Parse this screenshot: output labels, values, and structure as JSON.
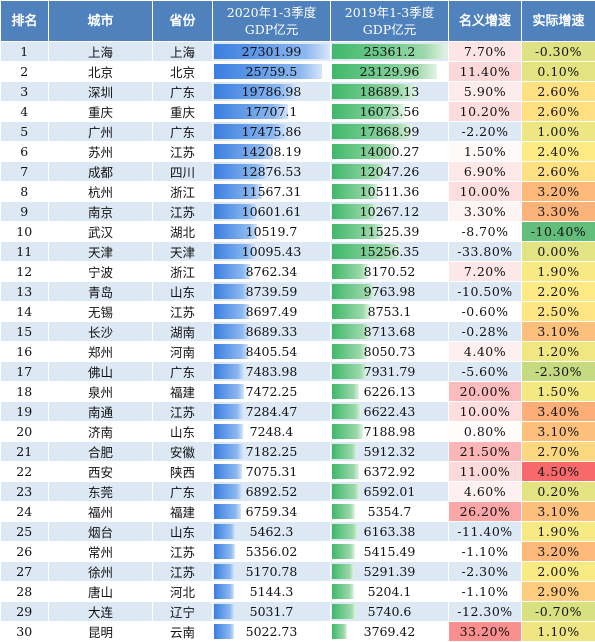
{
  "headers": {
    "rank": "排名",
    "city": "城市",
    "province": "省份",
    "gdp2020_line1": "2020年1-3季度",
    "gdp2020_line2": "GDP亿元",
    "gdp2019_line1": "2019年1-3季度",
    "gdp2019_line2": "GDP亿元",
    "nominal": "名义增速",
    "real": "实际增速"
  },
  "colors": {
    "header": "#4f81bd",
    "band": "#dde8f5",
    "bar2020": "#3a7ee0",
    "bar2019": "#3fb86a",
    "scale_red": "#f8696b",
    "scale_yellow": "#ffeb84",
    "scale_green": "#63be7b"
  },
  "rows": [
    {
      "rank": "1",
      "city": "上海",
      "province": "上海",
      "gdp2020": "27301.99",
      "gdp2019": "25361.2",
      "nominal": "7.70%",
      "real": "-0.30%",
      "n": 7.7,
      "r": -0.3,
      "v20": 27301.99,
      "v19": 25361.2
    },
    {
      "rank": "2",
      "city": "北京",
      "province": "北京",
      "gdp2020": "25759.5",
      "gdp2019": "23129.96",
      "nominal": "11.40%",
      "real": "0.10%",
      "n": 11.4,
      "r": 0.1,
      "v20": 25759.5,
      "v19": 23129.96
    },
    {
      "rank": "3",
      "city": "深圳",
      "province": "广东",
      "gdp2020": "19786.98",
      "gdp2019": "18689.13",
      "nominal": "5.90%",
      "real": "2.60%",
      "n": 5.9,
      "r": 2.6,
      "v20": 19786.98,
      "v19": 18689.13
    },
    {
      "rank": "4",
      "city": "重庆",
      "province": "重庆",
      "gdp2020": "17707.1",
      "gdp2019": "16073.56",
      "nominal": "10.20%",
      "real": "2.60%",
      "n": 10.2,
      "r": 2.6,
      "v20": 17707.1,
      "v19": 16073.56
    },
    {
      "rank": "5",
      "city": "广州",
      "province": "广东",
      "gdp2020": "17475.86",
      "gdp2019": "17868.99",
      "nominal": "-2.20%",
      "real": "1.00%",
      "n": -2.2,
      "r": 1.0,
      "v20": 17475.86,
      "v19": 17868.99
    },
    {
      "rank": "6",
      "city": "苏州",
      "province": "江苏",
      "gdp2020": "14208.19",
      "gdp2019": "14000.27",
      "nominal": "1.50%",
      "real": "2.40%",
      "n": 1.5,
      "r": 2.4,
      "v20": 14208.19,
      "v19": 14000.27
    },
    {
      "rank": "7",
      "city": "成都",
      "province": "四川",
      "gdp2020": "12876.53",
      "gdp2019": "12047.26",
      "nominal": "6.90%",
      "real": "2.60%",
      "n": 6.9,
      "r": 2.6,
      "v20": 12876.53,
      "v19": 12047.26
    },
    {
      "rank": "8",
      "city": "杭州",
      "province": "浙江",
      "gdp2020": "11567.31",
      "gdp2019": "10511.36",
      "nominal": "10.00%",
      "real": "3.20%",
      "n": 10.0,
      "r": 3.2,
      "v20": 11567.31,
      "v19": 10511.36
    },
    {
      "rank": "9",
      "city": "南京",
      "province": "江苏",
      "gdp2020": "10601.61",
      "gdp2019": "10267.12",
      "nominal": "3.30%",
      "real": "3.30%",
      "n": 3.3,
      "r": 3.3,
      "v20": 10601.61,
      "v19": 10267.12
    },
    {
      "rank": "10",
      "city": "武汉",
      "province": "湖北",
      "gdp2020": "10519.7",
      "gdp2019": "11525.39",
      "nominal": "-8.70%",
      "real": "-10.40%",
      "n": -8.7,
      "r": -10.4,
      "v20": 10519.7,
      "v19": 11525.39
    },
    {
      "rank": "11",
      "city": "天津",
      "province": "天津",
      "gdp2020": "10095.43",
      "gdp2019": "15256.35",
      "nominal": "-33.80%",
      "real": "0.00%",
      "n": -33.8,
      "r": 0.0,
      "v20": 10095.43,
      "v19": 15256.35
    },
    {
      "rank": "12",
      "city": "宁波",
      "province": "浙江",
      "gdp2020": "8762.34",
      "gdp2019": "8170.52",
      "nominal": "7.20%",
      "real": "1.90%",
      "n": 7.2,
      "r": 1.9,
      "v20": 8762.34,
      "v19": 8170.52
    },
    {
      "rank": "13",
      "city": "青岛",
      "province": "山东",
      "gdp2020": "8739.59",
      "gdp2019": "9763.98",
      "nominal": "-10.50%",
      "real": "2.20%",
      "n": -10.5,
      "r": 2.2,
      "v20": 8739.59,
      "v19": 9763.98
    },
    {
      "rank": "14",
      "city": "无锡",
      "province": "江苏",
      "gdp2020": "8697.49",
      "gdp2019": "8753.1",
      "nominal": "-0.60%",
      "real": "2.50%",
      "n": -0.6,
      "r": 2.5,
      "v20": 8697.49,
      "v19": 8753.1
    },
    {
      "rank": "15",
      "city": "长沙",
      "province": "湖南",
      "gdp2020": "8689.33",
      "gdp2019": "8713.68",
      "nominal": "-0.28%",
      "real": "3.10%",
      "n": -0.28,
      "r": 3.1,
      "v20": 8689.33,
      "v19": 8713.68
    },
    {
      "rank": "16",
      "city": "郑州",
      "province": "河南",
      "gdp2020": "8405.54",
      "gdp2019": "8050.73",
      "nominal": "4.40%",
      "real": "1.20%",
      "n": 4.4,
      "r": 1.2,
      "v20": 8405.54,
      "v19": 8050.73
    },
    {
      "rank": "17",
      "city": "佛山",
      "province": "广东",
      "gdp2020": "7483.98",
      "gdp2019": "7931.79",
      "nominal": "-5.60%",
      "real": "-2.30%",
      "n": -5.6,
      "r": -2.3,
      "v20": 7483.98,
      "v19": 7931.79
    },
    {
      "rank": "18",
      "city": "泉州",
      "province": "福建",
      "gdp2020": "7472.25",
      "gdp2019": "6226.13",
      "nominal": "20.00%",
      "real": "1.50%",
      "n": 20.0,
      "r": 1.5,
      "v20": 7472.25,
      "v19": 6226.13
    },
    {
      "rank": "19",
      "city": "南通",
      "province": "江苏",
      "gdp2020": "7284.47",
      "gdp2019": "6622.43",
      "nominal": "10.00%",
      "real": "3.40%",
      "n": 10.0,
      "r": 3.4,
      "v20": 7284.47,
      "v19": 6622.43
    },
    {
      "rank": "20",
      "city": "济南",
      "province": "山东",
      "gdp2020": "7248.4",
      "gdp2019": "7188.98",
      "nominal": "0.80%",
      "real": "3.10%",
      "n": 0.8,
      "r": 3.1,
      "v20": 7248.4,
      "v19": 7188.98
    },
    {
      "rank": "21",
      "city": "合肥",
      "province": "安徽",
      "gdp2020": "7182.25",
      "gdp2019": "5912.32",
      "nominal": "21.50%",
      "real": "2.70%",
      "n": 21.5,
      "r": 2.7,
      "v20": 7182.25,
      "v19": 5912.32
    },
    {
      "rank": "22",
      "city": "西安",
      "province": "陕西",
      "gdp2020": "7075.31",
      "gdp2019": "6372.92",
      "nominal": "11.00%",
      "real": "4.50%",
      "n": 11.0,
      "r": 4.5,
      "v20": 7075.31,
      "v19": 6372.92
    },
    {
      "rank": "23",
      "city": "东莞",
      "province": "广东",
      "gdp2020": "6892.52",
      "gdp2019": "6592.01",
      "nominal": "4.60%",
      "real": "0.20%",
      "n": 4.6,
      "r": 0.2,
      "v20": 6892.52,
      "v19": 6592.01
    },
    {
      "rank": "24",
      "city": "福州",
      "province": "福建",
      "gdp2020": "6759.34",
      "gdp2019": "5354.7",
      "nominal": "26.20%",
      "real": "3.10%",
      "n": 26.2,
      "r": 3.1,
      "v20": 6759.34,
      "v19": 5354.7
    },
    {
      "rank": "25",
      "city": "烟台",
      "province": "山东",
      "gdp2020": "5462.3",
      "gdp2019": "6163.38",
      "nominal": "-11.40%",
      "real": "1.90%",
      "n": -11.4,
      "r": 1.9,
      "v20": 5462.3,
      "v19": 6163.38
    },
    {
      "rank": "26",
      "city": "常州",
      "province": "江苏",
      "gdp2020": "5356.02",
      "gdp2019": "5415.49",
      "nominal": "-1.10%",
      "real": "3.20%",
      "n": -1.1,
      "r": 3.2,
      "v20": 5356.02,
      "v19": 5415.49
    },
    {
      "rank": "27",
      "city": "徐州",
      "province": "江苏",
      "gdp2020": "5170.78",
      "gdp2019": "5291.39",
      "nominal": "-2.30%",
      "real": "2.00%",
      "n": -2.3,
      "r": 2.0,
      "v20": 5170.78,
      "v19": 5291.39
    },
    {
      "rank": "28",
      "city": "唐山",
      "province": "河北",
      "gdp2020": "5144.3",
      "gdp2019": "5204.1",
      "nominal": "-1.10%",
      "real": "2.90%",
      "n": -1.1,
      "r": 2.9,
      "v20": 5144.3,
      "v19": 5204.1
    },
    {
      "rank": "29",
      "city": "大连",
      "province": "辽宁",
      "gdp2020": "5031.7",
      "gdp2019": "5740.6",
      "nominal": "-12.30%",
      "real": "-0.70%",
      "n": -12.3,
      "r": -0.7,
      "v20": 5031.7,
      "v19": 5740.6
    },
    {
      "rank": "30",
      "city": "昆明",
      "province": "云南",
      "gdp2020": "5022.73",
      "gdp2019": "3769.42",
      "nominal": "33.20%",
      "real": "1.10%",
      "n": 33.2,
      "r": 1.1,
      "v20": 5022.73,
      "v19": 3769.42
    }
  ]
}
